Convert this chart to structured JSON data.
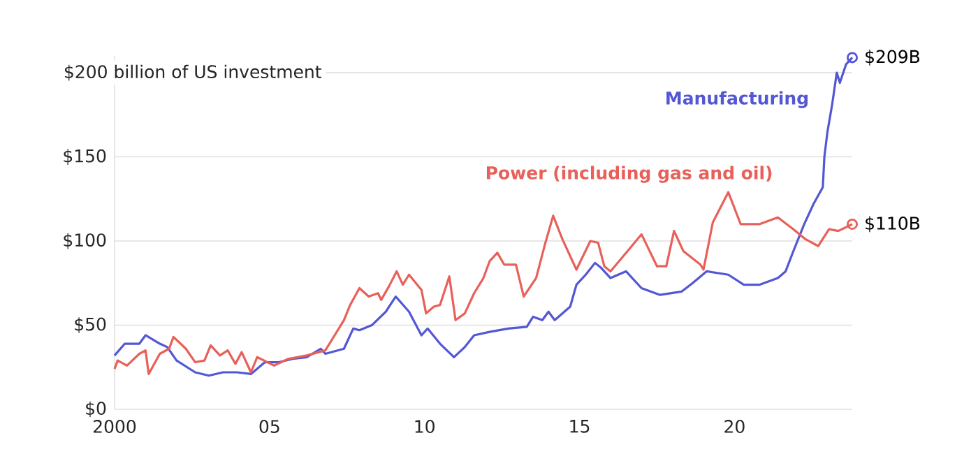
{
  "chart_data": {
    "type": "line",
    "ylabel": "$200 billion of US investment",
    "xlim": [
      2000,
      2023.8
    ],
    "ylim": [
      0,
      210
    ],
    "xticks": [
      {
        "value": 2000,
        "label": "2000"
      },
      {
        "value": 2005,
        "label": "05"
      },
      {
        "value": 2010,
        "label": "10"
      },
      {
        "value": 2015,
        "label": "15"
      },
      {
        "value": 2020,
        "label": "20"
      }
    ],
    "yticks": [
      {
        "value": 0,
        "label": "$0"
      },
      {
        "value": 50,
        "label": "$50"
      },
      {
        "value": 100,
        "label": "$100"
      },
      {
        "value": 150,
        "label": "$150"
      },
      {
        "value": 200,
        "label": null
      }
    ],
    "grid": "y",
    "marker": "none",
    "line_style": "solid",
    "series": [
      {
        "name": "Manufacturing",
        "color": "#5457d4",
        "x": [
          2000,
          2000.33,
          2000.8,
          2001.0,
          2001.46,
          2001.7,
          2002.0,
          2002.6,
          2003.04,
          2003.5,
          2003.95,
          2004.4,
          2004.85,
          2005.3,
          2005.75,
          2006.2,
          2006.65,
          2006.8,
          2007.4,
          2007.7,
          2007.9,
          2008.3,
          2008.75,
          2009.07,
          2009.5,
          2009.9,
          2010.1,
          2010.5,
          2010.95,
          2011.3,
          2011.6,
          2012.1,
          2012.7,
          2013.3,
          2013.5,
          2013.8,
          2014.0,
          2014.2,
          2014.7,
          2014.9,
          2015.2,
          2015.5,
          2015.7,
          2016.0,
          2016.5,
          2017.0,
          2017.6,
          2018.3,
          2018.65,
          2019.1,
          2019.8,
          2020.3,
          2020.8,
          2021.4,
          2021.65,
          2021.9,
          2022.25,
          2022.55,
          2022.85,
          2022.9,
          2023.0,
          2023.15,
          2023.3,
          2023.4,
          2023.6,
          2023.8
        ],
        "values": [
          32,
          39,
          39,
          44,
          39,
          37,
          29,
          22,
          20,
          22,
          22,
          21,
          28,
          28,
          30,
          31,
          36,
          33,
          36,
          48,
          47,
          50,
          58,
          67,
          58,
          44,
          48,
          39,
          31,
          37,
          44,
          46,
          48,
          49,
          55,
          53,
          58,
          53,
          61,
          74,
          80,
          87,
          84,
          78,
          82,
          72,
          68,
          70,
          75,
          82,
          80,
          74,
          74,
          78,
          82,
          94,
          110,
          122,
          132,
          150,
          165,
          181,
          200,
          194,
          205,
          209
        ],
        "value_labels": [
          null,
          null,
          null,
          null,
          null,
          null,
          null,
          null,
          null,
          null,
          null,
          null,
          null,
          null,
          null,
          null,
          null,
          null,
          null,
          null,
          null,
          null,
          null,
          null,
          null,
          null,
          null,
          null,
          null,
          null,
          null,
          null,
          null,
          null,
          null,
          null,
          null,
          null,
          null,
          null,
          null,
          null,
          null,
          null,
          null,
          null,
          null,
          null,
          null,
          null,
          null,
          null,
          null,
          null,
          null,
          null,
          null,
          null,
          null,
          null,
          null,
          null,
          null,
          null,
          null,
          "$209B"
        ]
      },
      {
        "name": "Power (including gas and oil)",
        "color": "#e8605a",
        "x": [
          2000,
          2000.1,
          2000.4,
          2000.8,
          2001.0,
          2001.1,
          2001.46,
          2001.76,
          2001.9,
          2002.3,
          2002.6,
          2002.9,
          2003.1,
          2003.4,
          2003.65,
          2003.9,
          2004.1,
          2004.4,
          2004.6,
          2005.15,
          2005.6,
          2006.2,
          2006.8,
          2007.1,
          2007.4,
          2007.6,
          2007.9,
          2008.2,
          2008.5,
          2008.6,
          2008.85,
          2009.1,
          2009.3,
          2009.5,
          2009.9,
          2010.05,
          2010.3,
          2010.5,
          2010.8,
          2011.0,
          2011.3,
          2011.6,
          2011.9,
          2012.1,
          2012.35,
          2012.57,
          2012.95,
          2013.2,
          2013.6,
          2013.9,
          2014.15,
          2014.45,
          2014.9,
          2015.35,
          2015.6,
          2015.8,
          2016.0,
          2016.55,
          2017.0,
          2017.5,
          2017.8,
          2018.05,
          2018.35,
          2018.9,
          2019.0,
          2019.3,
          2019.8,
          2020.2,
          2020.8,
          2021.4,
          2021.9,
          2022.3,
          2022.7,
          2023.05,
          2023.35,
          2023.8
        ],
        "values": [
          24,
          29,
          26,
          33,
          35,
          21,
          33,
          36,
          43,
          36,
          28,
          29,
          38,
          32,
          35,
          27,
          34,
          22,
          31,
          26,
          30,
          32,
          35,
          44,
          53,
          62,
          72,
          67,
          69,
          65,
          73,
          82,
          74,
          80,
          71,
          57,
          61,
          62,
          79,
          53,
          57,
          69,
          78,
          88,
          93,
          86,
          86,
          67,
          78,
          99,
          115,
          101,
          83,
          100,
          99,
          85,
          82,
          94,
          104,
          85,
          85,
          106,
          94,
          86,
          83,
          111,
          129,
          110,
          110,
          114,
          107,
          101,
          97,
          107,
          106,
          110
        ],
        "value_labels": [
          null,
          null,
          null,
          null,
          null,
          null,
          null,
          null,
          null,
          null,
          null,
          null,
          null,
          null,
          null,
          null,
          null,
          null,
          null,
          null,
          null,
          null,
          null,
          null,
          null,
          null,
          null,
          null,
          null,
          null,
          null,
          null,
          null,
          null,
          null,
          null,
          null,
          null,
          null,
          null,
          null,
          null,
          null,
          null,
          null,
          null,
          null,
          null,
          null,
          null,
          null,
          null,
          null,
          null,
          null,
          null,
          null,
          null,
          null,
          null,
          null,
          null,
          null,
          null,
          null,
          null,
          null,
          null,
          null,
          null,
          null,
          null,
          null,
          null,
          null,
          "$110B"
        ]
      }
    ]
  }
}
